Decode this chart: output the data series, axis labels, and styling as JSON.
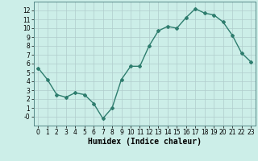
{
  "x": [
    0,
    1,
    2,
    3,
    4,
    5,
    6,
    7,
    8,
    9,
    10,
    11,
    12,
    13,
    14,
    15,
    16,
    17,
    18,
    19,
    20,
    21,
    22,
    23
  ],
  "y": [
    5.5,
    4.2,
    2.5,
    2.2,
    2.7,
    2.5,
    1.5,
    -0.2,
    1.0,
    4.2,
    5.7,
    5.7,
    8.0,
    9.7,
    10.2,
    10.0,
    11.2,
    12.2,
    11.7,
    11.5,
    10.7,
    9.2,
    7.2,
    6.2
  ],
  "line_color": "#2e7d6e",
  "marker": "D",
  "marker_size": 2.0,
  "bg_color": "#cceee8",
  "grid_color": "#b0cccc",
  "xlabel": "Humidex (Indice chaleur)",
  "ylim": [
    -1,
    13
  ],
  "xlim": [
    -0.5,
    23.5
  ],
  "yticks": [
    0,
    1,
    2,
    3,
    4,
    5,
    6,
    7,
    8,
    9,
    10,
    11,
    12
  ],
  "ytick_labels": [
    "-0",
    "1",
    "2",
    "3",
    "4",
    "5",
    "6",
    "7",
    "8",
    "9",
    "10",
    "11",
    "12"
  ],
  "xticks": [
    0,
    1,
    2,
    3,
    4,
    5,
    6,
    7,
    8,
    9,
    10,
    11,
    12,
    13,
    14,
    15,
    16,
    17,
    18,
    19,
    20,
    21,
    22,
    23
  ],
  "tick_fontsize": 5.5,
  "label_fontsize": 7,
  "line_width": 1.0
}
